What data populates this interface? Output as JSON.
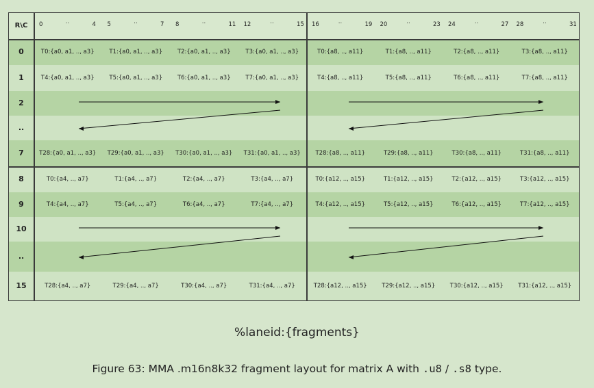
{
  "corner_label": "R\\C",
  "column_ticks": [
    {
      "text": "0",
      "col": 0
    },
    {
      "text": "..",
      "col": 1
    },
    {
      "text": "4",
      "col": 2
    },
    {
      "text": "5",
      "col": 3
    },
    {
      "text": "..",
      "col": 4
    },
    {
      "text": "7",
      "col": 5
    },
    {
      "text": "8",
      "col": 6
    },
    {
      "text": "..",
      "col": 7
    },
    {
      "text": "11",
      "col": 8
    },
    {
      "text": "12",
      "col": 9
    },
    {
      "text": "..",
      "col": 10
    },
    {
      "text": "15",
      "col": 11
    },
    {
      "text": "16",
      "col": 12
    },
    {
      "text": "..",
      "col": 13
    },
    {
      "text": "19",
      "col": 14
    },
    {
      "text": "20",
      "col": 15
    },
    {
      "text": "..",
      "col": 16
    },
    {
      "text": "23",
      "col": 17
    },
    {
      "text": "24",
      "col": 18
    },
    {
      "text": "..",
      "col": 19
    },
    {
      "text": "27",
      "col": 20
    },
    {
      "text": "28",
      "col": 21
    },
    {
      "text": "..",
      "col": 22
    },
    {
      "text": "31",
      "col": 23
    }
  ],
  "rows": [
    {
      "label": "0",
      "type": "data",
      "shade": "dark",
      "cells": [
        "T0:{a0, a1, .., a3}",
        "T1:{a0, a1, .., a3}",
        "T2:{a0, a1, .., a3}",
        "T3:{a0, a1, .., a3}",
        "T0:{a8, .., a11}",
        "T1:{a8, .., a11}",
        "T2:{a8, .., a11}",
        "T3:{a8, .., a11}"
      ]
    },
    {
      "label": "1",
      "type": "data",
      "shade": "light",
      "cells": [
        "T4:{a0, a1, .., a3}",
        "T5:{a0, a1, .., a3}",
        "T6:{a0, a1, .., a3}",
        "T7:{a0, a1, .., a3}",
        "T4:{a8, .., a11}",
        "T5:{a8, .., a11}",
        "T6:{a8, .., a11}",
        "T7:{a8, .., a11}"
      ]
    },
    {
      "label": "2",
      "type": "arrow-top",
      "shade": "dark",
      "cells": []
    },
    {
      "label": "..",
      "type": "arrow-bottom",
      "shade": "light",
      "cells": []
    },
    {
      "label": "7",
      "type": "data",
      "shade": "dark",
      "cells": [
        "T28:{a0, a1, .., a3}",
        "T29:{a0, a1, .., a3}",
        "T30:{a0, a1, .., a3}",
        "T31:{a0, a1, .., a3}",
        "T28:{a8, .., a11}",
        "T29:{a8, .., a11}",
        "T30:{a8, .., a11}",
        "T31:{a8, .., a11}"
      ]
    },
    {
      "label": "8",
      "type": "data",
      "shade": "light",
      "cells": [
        "T0:{a4, .., a7}",
        "T1:{a4, .., a7}",
        "T2:{a4, .., a7}",
        "T3:{a4, .., a7}",
        "T0:{a12, .., a15}",
        "T1:{a12, .., a15}",
        "T2:{a12, .., a15}",
        "T3:{a12, .., a15}"
      ]
    },
    {
      "label": "9",
      "type": "data",
      "shade": "dark",
      "cells": [
        "T4:{a4, .., a7}",
        "T5:{a4, .., a7}",
        "T6:{a4, .., a7}",
        "T7:{a4, .., a7}",
        "T4:{a12, .., a15}",
        "T5:{a12, .., a15}",
        "T6:{a12, .., a15}",
        "T7:{a12, .., a15}"
      ]
    },
    {
      "label": "10",
      "type": "arrow-top",
      "shade": "light",
      "cells": []
    },
    {
      "label": "..",
      "type": "arrow-bottom",
      "shade": "dark",
      "cells": []
    },
    {
      "label": "15",
      "type": "data",
      "shade": "light",
      "cells": [
        "T28:{a4, .., a7}",
        "T29:{a4, .., a7}",
        "T30:{a4, .., a7}",
        "T31:{a4, .., a7}",
        "T28:{a12, .., a15}",
        "T29:{a12, .., a15}",
        "T30:{a12, .., a15}",
        "T31:{a12, .., a15}"
      ]
    }
  ],
  "legend_text": "%laneid:{fragments}",
  "caption": {
    "prefix": "Figure 63: MMA .m16n8k32 fragment layout for matrix A with ",
    "code1": ".u8",
    "sep": " / ",
    "code2": ".s8",
    "suffix": " type."
  },
  "colors": {
    "background": "#d6e6cc",
    "row_dark": "#b5d4a4",
    "row_light": "#cfe3c4",
    "grid_line": "#3a3a3a"
  }
}
